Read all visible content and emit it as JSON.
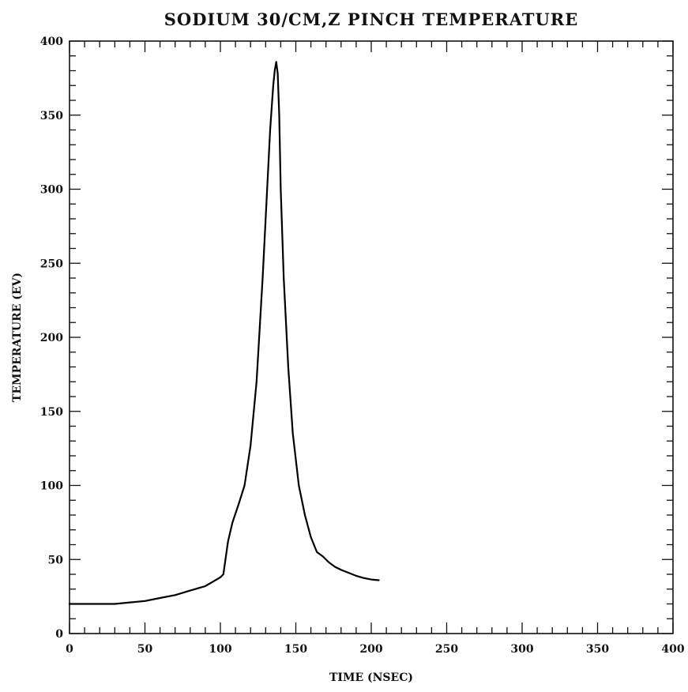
{
  "chart_data": {
    "type": "line",
    "title": "SODIUM 30/CM,Z PINCH TEMPERATURE",
    "xlabel": "TIME (NSEC)",
    "ylabel": "TEMPERATURE (EV)",
    "xlim": [
      0,
      400
    ],
    "ylim": [
      0,
      400
    ],
    "xticks": [
      0,
      50,
      100,
      150,
      200,
      250,
      300,
      350,
      400
    ],
    "yticks": [
      0,
      50,
      100,
      150,
      200,
      250,
      300,
      350,
      400
    ],
    "xtick_labels": [
      "0",
      "50",
      "100",
      "150",
      "200",
      "250",
      "300",
      "350",
      "400"
    ],
    "ytick_labels": [
      "0",
      "50",
      "100",
      "150",
      "200",
      "250",
      "300",
      "350",
      "400"
    ],
    "grid": false,
    "legend": "none",
    "line_color": "#000000",
    "series": [
      {
        "x": [
          0,
          20,
          30,
          40,
          50,
          60,
          70,
          80,
          90,
          95,
          100,
          102,
          105,
          108,
          112,
          116,
          120,
          124,
          128,
          131,
          133,
          135,
          136,
          137,
          138,
          139,
          140,
          142,
          145,
          148,
          152,
          156,
          160,
          164,
          168,
          172,
          176,
          180,
          185,
          190,
          195,
          200,
          205
        ],
        "y": [
          20,
          20,
          20,
          21,
          22,
          24,
          26,
          29,
          32,
          35,
          38,
          40,
          62,
          75,
          87,
          100,
          127,
          170,
          240,
          300,
          340,
          370,
          380,
          386,
          378,
          350,
          300,
          240,
          180,
          135,
          100,
          80,
          65,
          55,
          52,
          48,
          45,
          43,
          41,
          39,
          37.5,
          36.5,
          36
        ]
      }
    ]
  }
}
